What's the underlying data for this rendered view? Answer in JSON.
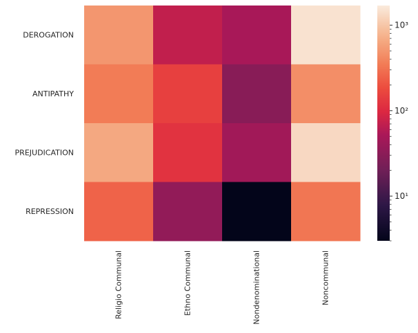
{
  "chart_data": {
    "type": "heatmap",
    "title": "",
    "xlabel": "",
    "ylabel": "",
    "rows": [
      "DEROGATION",
      "ANTIPATHY",
      "PREJUDICATION",
      "REPRESSION"
    ],
    "columns": [
      "Religio Communal",
      "Ethno Communal",
      "Nondenominational",
      "Noncommunal"
    ],
    "values": [
      [
        500,
        70,
        50,
        1500
      ],
      [
        350,
        150,
        30,
        450
      ],
      [
        650,
        120,
        45,
        1300
      ],
      [
        250,
        35,
        3,
        320
      ]
    ],
    "color_scale": "log",
    "colormap": "rocket",
    "vmin": 3,
    "vmax": 1700,
    "colorbar": {
      "major_ticks": [
        10,
        100,
        1000
      ],
      "major_labels": [
        "10¹",
        "10²",
        "10³"
      ]
    }
  }
}
